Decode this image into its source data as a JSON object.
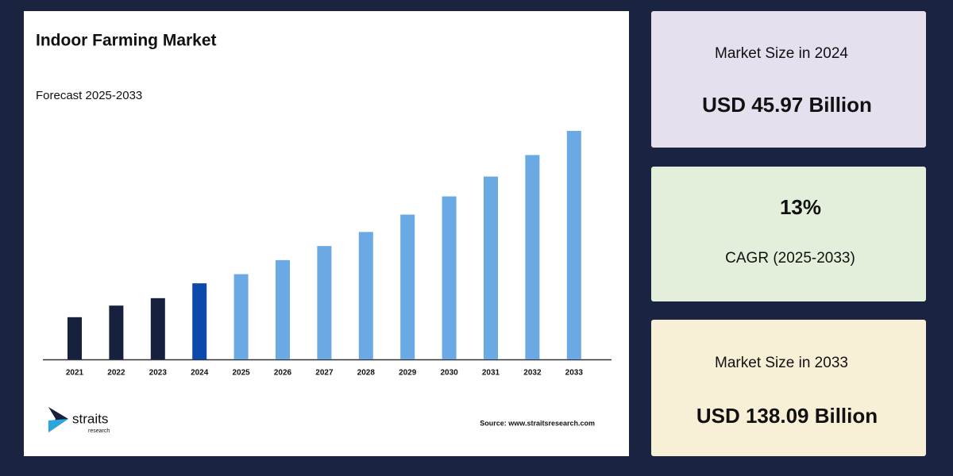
{
  "chart_data": {
    "type": "bar",
    "title": "Indoor Farming Market",
    "subtitle": "Forecast 2025-2033",
    "categories": [
      "2021",
      "2022",
      "2023",
      "2024",
      "2025",
      "2026",
      "2027",
      "2028",
      "2029",
      "2030",
      "2031",
      "2032",
      "2033"
    ],
    "values": [
      25.5,
      32.5,
      37,
      45.97,
      51.5,
      60,
      68.5,
      77,
      87.5,
      98.5,
      110.5,
      123.5,
      138.09
    ],
    "colors": [
      "#17213d",
      "#17213d",
      "#17213d",
      "#0b49ab",
      "#6aa9e3",
      "#6aa9e3",
      "#6aa9e3",
      "#6aa9e3",
      "#6aa9e3",
      "#6aa9e3",
      "#6aa9e3",
      "#6aa9e3",
      "#6aa9e3"
    ],
    "source": "Source: www.straitsresearch.com"
  },
  "logo": {
    "name": "straits",
    "tagline": "research"
  },
  "cards": [
    {
      "label": "Market Size in 2024",
      "value": "USD 45.97 Billion"
    },
    {
      "value": "13%",
      "label": "CAGR (2025-2033)"
    },
    {
      "label": "Market Size in 2033",
      "value": "USD 138.09 Billion"
    }
  ]
}
